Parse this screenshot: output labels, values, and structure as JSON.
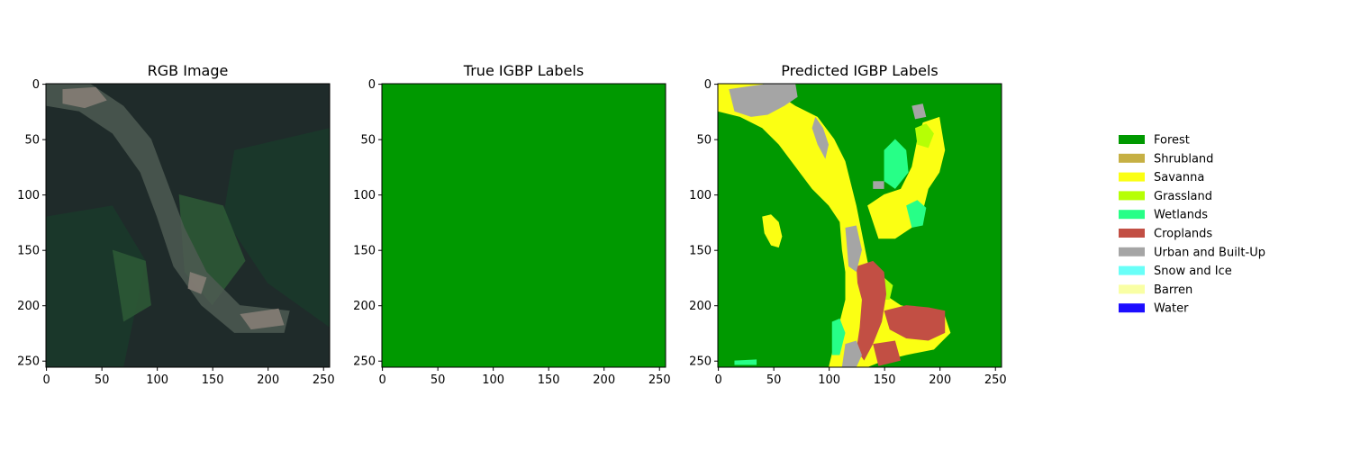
{
  "chart_data": [
    {
      "type": "heatmap",
      "title": "RGB Image",
      "xlim": [
        0,
        256
      ],
      "ylim": [
        256,
        0
      ],
      "xticks": [
        "0",
        "50",
        "100",
        "150",
        "200",
        "250"
      ],
      "yticks": [
        "0",
        "50",
        "100",
        "150",
        "200",
        "250"
      ],
      "content": "satellite-rgb",
      "colors": {
        "base": "#1f2b2a",
        "forest": "#1a3a2a",
        "field": "#2e5a36",
        "valley": "#4e5a52",
        "settlement": "#8a8078"
      }
    },
    {
      "type": "heatmap",
      "title": "True IGBP Labels",
      "xlim": [
        0,
        256
      ],
      "ylim": [
        256,
        0
      ],
      "xticks": [
        "0",
        "50",
        "100",
        "150",
        "200",
        "250"
      ],
      "yticks": [
        "0",
        "50",
        "100",
        "150",
        "200",
        "250"
      ],
      "fill_class": "Forest"
    },
    {
      "type": "heatmap",
      "title": "Predicted IGBP Labels",
      "xlim": [
        0,
        256
      ],
      "ylim": [
        256,
        0
      ],
      "xticks": [
        "0",
        "50",
        "100",
        "150",
        "200",
        "250"
      ],
      "yticks": [
        "0",
        "50",
        "100",
        "150",
        "200",
        "250"
      ],
      "base_class": "Forest",
      "regions": [
        {
          "class": "Savanna",
          "points": [
            [
              0,
              0
            ],
            [
              40,
              0
            ],
            [
              55,
              10
            ],
            [
              70,
              20
            ],
            [
              90,
              30
            ],
            [
              105,
              50
            ],
            [
              115,
              70
            ],
            [
              120,
              90
            ],
            [
              125,
              110
            ],
            [
              130,
              135
            ],
            [
              135,
              160
            ],
            [
              140,
              180
            ],
            [
              150,
              190
            ],
            [
              165,
              200
            ],
            [
              185,
              205
            ],
            [
              205,
              210
            ],
            [
              210,
              225
            ],
            [
              195,
              240
            ],
            [
              170,
              245
            ],
            [
              150,
              250
            ],
            [
              135,
              256
            ],
            [
              100,
              256
            ],
            [
              105,
              235
            ],
            [
              110,
              215
            ],
            [
              115,
              195
            ],
            [
              115,
              170
            ],
            [
              112,
              150
            ],
            [
              110,
              125
            ],
            [
              100,
              110
            ],
            [
              85,
              95
            ],
            [
              70,
              75
            ],
            [
              55,
              55
            ],
            [
              40,
              40
            ],
            [
              20,
              30
            ],
            [
              0,
              25
            ]
          ]
        },
        {
          "class": "Savanna",
          "points": [
            [
              135,
              110
            ],
            [
              150,
              100
            ],
            [
              165,
              95
            ],
            [
              175,
              75
            ],
            [
              180,
              50
            ],
            [
              185,
              35
            ],
            [
              200,
              30
            ],
            [
              205,
              60
            ],
            [
              200,
              80
            ],
            [
              190,
              95
            ],
            [
              185,
              115
            ],
            [
              175,
              130
            ],
            [
              160,
              140
            ],
            [
              145,
              140
            ]
          ]
        },
        {
          "class": "Savanna",
          "points": [
            [
              40,
              120
            ],
            [
              48,
              118
            ],
            [
              55,
              125
            ],
            [
              58,
              138
            ],
            [
              55,
              148
            ],
            [
              48,
              146
            ],
            [
              42,
              135
            ]
          ]
        },
        {
          "class": "Grassland",
          "points": [
            [
              140,
              180
            ],
            [
              150,
              175
            ],
            [
              158,
              182
            ],
            [
              155,
              195
            ],
            [
              145,
              195
            ]
          ]
        },
        {
          "class": "Grassland",
          "points": [
            [
              178,
              40
            ],
            [
              188,
              36
            ],
            [
              195,
              45
            ],
            [
              190,
              58
            ],
            [
              180,
              55
            ]
          ]
        },
        {
          "class": "Wetlands",
          "points": [
            [
              150,
              60
            ],
            [
              160,
              50
            ],
            [
              170,
              60
            ],
            [
              172,
              80
            ],
            [
              160,
              95
            ],
            [
              150,
              88
            ]
          ]
        },
        {
          "class": "Wetlands",
          "points": [
            [
              170,
              110
            ],
            [
              180,
              105
            ],
            [
              188,
              112
            ],
            [
              185,
              128
            ],
            [
              175,
              130
            ]
          ]
        },
        {
          "class": "Wetlands",
          "points": [
            [
              103,
              215
            ],
            [
              110,
              212
            ],
            [
              115,
              225
            ],
            [
              110,
              245
            ],
            [
              103,
              245
            ]
          ]
        },
        {
          "class": "Wetlands",
          "points": [
            [
              15,
              250
            ],
            [
              35,
              249
            ],
            [
              35,
              254
            ],
            [
              15,
              254
            ]
          ]
        },
        {
          "class": "Croplands",
          "points": [
            [
              125,
              165
            ],
            [
              140,
              160
            ],
            [
              150,
              170
            ],
            [
              152,
              190
            ],
            [
              148,
              215
            ],
            [
              140,
              235
            ],
            [
              132,
              250
            ],
            [
              125,
              240
            ],
            [
              128,
              220
            ],
            [
              130,
              195
            ],
            [
              126,
              180
            ]
          ]
        },
        {
          "class": "Croplands",
          "points": [
            [
              150,
              205
            ],
            [
              170,
              200
            ],
            [
              190,
              202
            ],
            [
              205,
              205
            ],
            [
              205,
              225
            ],
            [
              190,
              232
            ],
            [
              170,
              230
            ],
            [
              155,
              222
            ]
          ]
        },
        {
          "class": "Croplands",
          "points": [
            [
              140,
              235
            ],
            [
              160,
              232
            ],
            [
              165,
              250
            ],
            [
              145,
              255
            ]
          ]
        },
        {
          "class": "Urban and Built-Up",
          "points": [
            [
              10,
              5
            ],
            [
              30,
              2
            ],
            [
              45,
              0
            ],
            [
              70,
              0
            ],
            [
              72,
              12
            ],
            [
              60,
              20
            ],
            [
              45,
              28
            ],
            [
              30,
              30
            ],
            [
              15,
              25
            ]
          ]
        },
        {
          "class": "Urban and Built-Up",
          "points": [
            [
              88,
              30
            ],
            [
              95,
              40
            ],
            [
              100,
              55
            ],
            [
              97,
              68
            ],
            [
              90,
              55
            ],
            [
              85,
              40
            ]
          ]
        },
        {
          "class": "Urban and Built-Up",
          "points": [
            [
              115,
              130
            ],
            [
              125,
              128
            ],
            [
              130,
              150
            ],
            [
              125,
              170
            ],
            [
              118,
              165
            ]
          ]
        },
        {
          "class": "Urban and Built-Up",
          "points": [
            [
              115,
              235
            ],
            [
              125,
              232
            ],
            [
              130,
              245
            ],
            [
              125,
              256
            ],
            [
              112,
              256
            ]
          ]
        },
        {
          "class": "Urban and Built-Up",
          "points": [
            [
              140,
              88
            ],
            [
              150,
              88
            ],
            [
              150,
              95
            ],
            [
              140,
              95
            ]
          ]
        },
        {
          "class": "Urban and Built-Up",
          "points": [
            [
              175,
              20
            ],
            [
              185,
              18
            ],
            [
              188,
              30
            ],
            [
              178,
              32
            ]
          ]
        }
      ]
    }
  ],
  "legend": [
    {
      "label": "Forest",
      "color": "#009900"
    },
    {
      "label": "Shrubland",
      "color": "#c6b044"
    },
    {
      "label": "Savanna",
      "color": "#fbff13"
    },
    {
      "label": "Grassland",
      "color": "#b6ff05"
    },
    {
      "label": "Wetlands",
      "color": "#27ff87"
    },
    {
      "label": "Croplands",
      "color": "#c24f44"
    },
    {
      "label": "Urban and Built-Up",
      "color": "#a5a5a5"
    },
    {
      "label": "Snow and Ice",
      "color": "#69fff8"
    },
    {
      "label": "Barren",
      "color": "#f9ffa4"
    },
    {
      "label": "Water",
      "color": "#1c0dff"
    }
  ]
}
